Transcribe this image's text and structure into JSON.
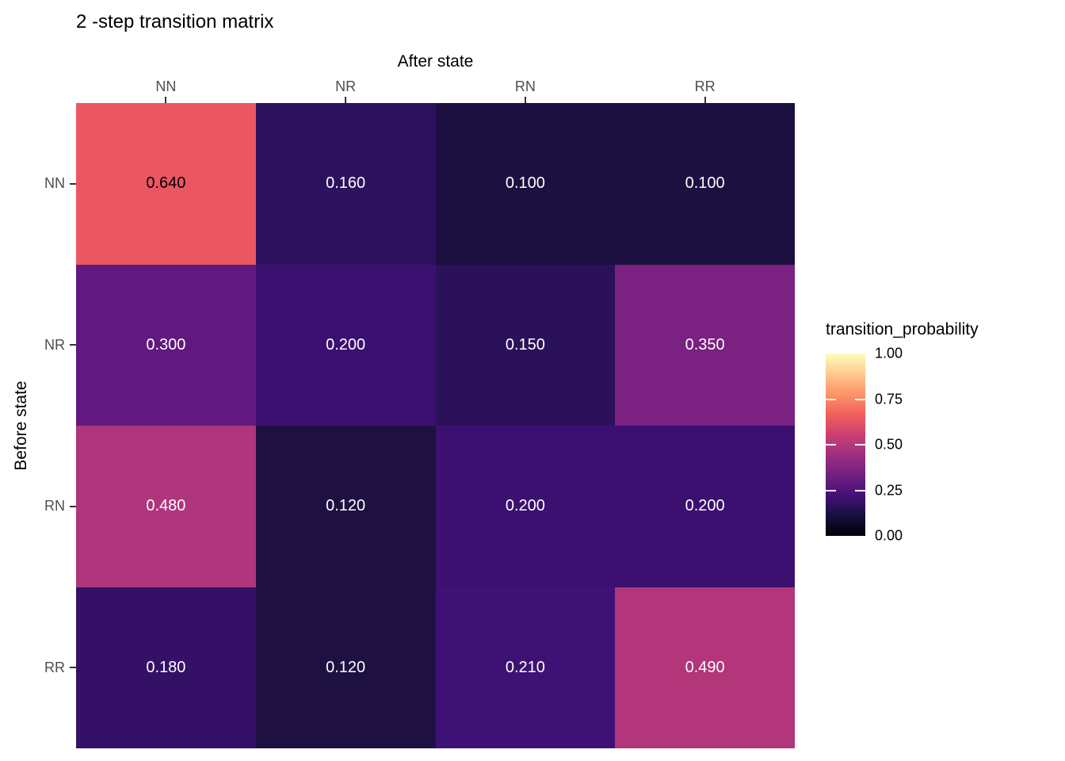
{
  "chart_data": {
    "type": "heatmap",
    "title": "2 -step transition matrix",
    "xlabel": "After state",
    "ylabel": "Before state",
    "x_categories": [
      "NN",
      "NR",
      "RN",
      "RR"
    ],
    "y_categories": [
      "NN",
      "NR",
      "RN",
      "RR"
    ],
    "values": [
      [
        0.64,
        0.16,
        0.1,
        0.1
      ],
      [
        0.3,
        0.2,
        0.15,
        0.35
      ],
      [
        0.48,
        0.12,
        0.2,
        0.2
      ],
      [
        0.18,
        0.12,
        0.21,
        0.49
      ]
    ],
    "cell_labels": [
      [
        "0.640",
        "0.160",
        "0.100",
        "0.100"
      ],
      [
        "0.300",
        "0.200",
        "0.150",
        "0.350"
      ],
      [
        "0.480",
        "0.120",
        "0.200",
        "0.200"
      ],
      [
        "0.180",
        "0.120",
        "0.210",
        "0.490"
      ]
    ],
    "cell_colors": [
      [
        "#EA5763",
        "#2C125E",
        "#1B1040",
        "#1B1040"
      ],
      [
        "#61197F",
        "#3B1070",
        "#2B115A",
        "#7A2182"
      ],
      [
        "#AF357C",
        "#1E1142",
        "#3B1070",
        "#3B1070"
      ],
      [
        "#341167",
        "#1E1142",
        "#3E1274",
        "#B23679"
      ]
    ],
    "cell_text_colors": [
      [
        "#000000",
        "#FFFFFF",
        "#FFFFFF",
        "#FFFFFF"
      ],
      [
        "#FFFFFF",
        "#FFFFFF",
        "#FFFFFF",
        "#FFFFFF"
      ],
      [
        "#FFFFFF",
        "#FFFFFF",
        "#FFFFFF",
        "#FFFFFF"
      ],
      [
        "#FFFFFF",
        "#FFFFFF",
        "#FFFFFF",
        "#FFFFFF"
      ]
    ],
    "grid": false,
    "legend_position": "right",
    "legend": {
      "title": "transition_probability",
      "tick_labels": [
        "1.00",
        "0.75",
        "0.50",
        "0.25",
        "0.00"
      ],
      "range": [
        0,
        1
      ],
      "colormap": "magma",
      "gradient_stops_bottom_to_top": [
        "#000004",
        "#180F3E",
        "#451077",
        "#721F81",
        "#9F2F7F",
        "#CD4071",
        "#F1605D",
        "#FD9567",
        "#FEC98D",
        "#FCFDBF"
      ],
      "inner_tick_fractions_from_top": [
        0.25,
        0.5,
        0.75
      ]
    },
    "axis_text_color": "#4D4D4D",
    "tick_mark_color": "#333333"
  }
}
